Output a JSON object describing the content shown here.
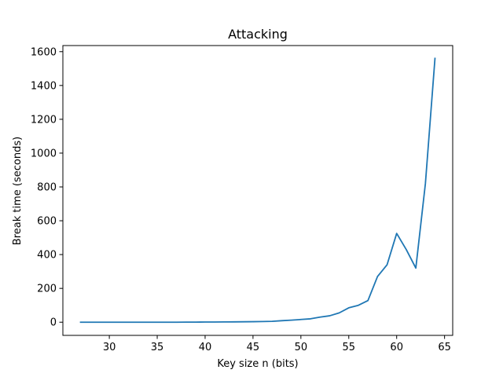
{
  "chart_data": {
    "type": "line",
    "title": "Attacking",
    "xlabel": "Key size n (bits)",
    "ylabel": "Break time (seconds)",
    "xlim": [
      25.15,
      65.85
    ],
    "ylim": [
      -77.9,
      1636.1
    ],
    "xticks": [
      30,
      35,
      40,
      45,
      50,
      55,
      60,
      65
    ],
    "yticks": [
      0,
      200,
      400,
      600,
      800,
      1000,
      1200,
      1400,
      1600
    ],
    "xtick_labels": [
      "30",
      "35",
      "40",
      "45",
      "50",
      "55",
      "60",
      "65"
    ],
    "ytick_labels": [
      "0",
      "200",
      "400",
      "600",
      "800",
      "1000",
      "1200",
      "1400",
      "1600"
    ],
    "grid": false,
    "legend": "none",
    "series": [
      {
        "color": "#1f77b4",
        "x": [
          27,
          28,
          29,
          30,
          31,
          32,
          33,
          34,
          35,
          36,
          37,
          38,
          39,
          40,
          41,
          42,
          43,
          44,
          45,
          46,
          47,
          48,
          49,
          50,
          51,
          52,
          53,
          54,
          55,
          56,
          57,
          58,
          59,
          60,
          61,
          62,
          63,
          64
        ],
        "y": [
          0,
          0,
          0,
          0,
          0,
          0,
          0,
          0,
          0,
          0,
          0,
          0.5,
          0.5,
          1,
          1,
          1.5,
          2,
          2.5,
          3,
          4,
          5,
          9,
          12,
          16,
          20,
          30,
          38,
          55,
          85,
          100,
          128,
          270,
          340,
          525,
          430,
          320,
          820,
          1560
        ]
      }
    ]
  }
}
